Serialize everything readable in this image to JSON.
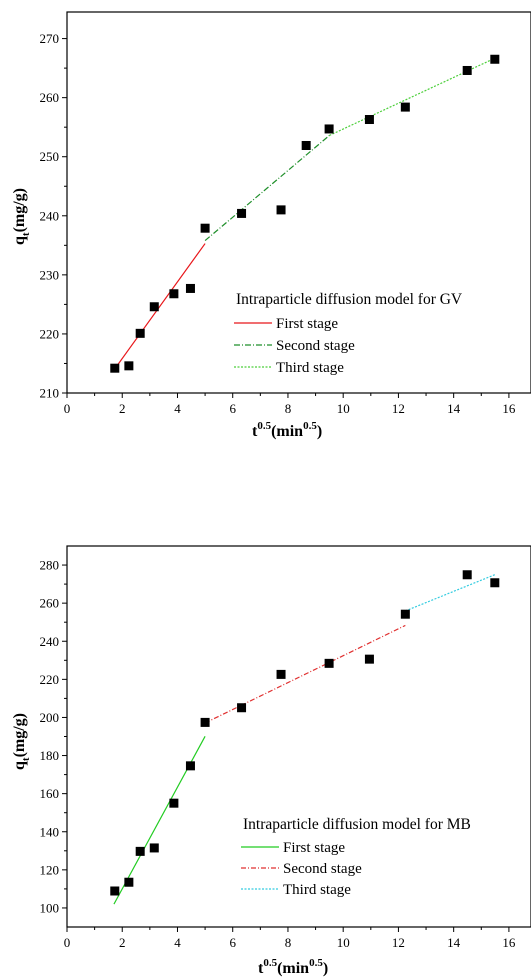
{
  "chart_data": [
    {
      "type": "scatter",
      "xlabel": "t^0.5(min^0.5)",
      "xlabel_parts": {
        "base": "t",
        "sup1": "0.5",
        "mid": "(min",
        "sup2": "0.5",
        "end": ")"
      },
      "ylabel": "qt(mg/g)",
      "ylabel_parts": {
        "base": "q",
        "sub": "t",
        "end": "(mg/g)"
      },
      "xlim": [
        0,
        16.8
      ],
      "ylim": [
        210,
        274.5
      ],
      "xticks": [
        "0",
        "2",
        "4",
        "6",
        "8",
        "10",
        "12",
        "14",
        "16"
      ],
      "xtick_values": [
        0,
        2,
        4,
        6,
        8,
        10,
        12,
        14,
        16
      ],
      "yticks": [
        "210",
        "220",
        "230",
        "240",
        "250",
        "260",
        "270"
      ],
      "ytick_values": [
        210,
        220,
        230,
        240,
        250,
        260,
        270
      ],
      "points": {
        "x": [
          1.73,
          2.24,
          2.65,
          3.16,
          3.87,
          4.47,
          5.0,
          6.32,
          7.75,
          8.66,
          9.49,
          10.95,
          12.25,
          14.49,
          15.49
        ],
        "y": [
          214.2,
          214.6,
          220.1,
          224.6,
          226.8,
          227.7,
          237.9,
          240.4,
          241.0,
          251.9,
          254.7,
          256.3,
          258.4,
          264.6,
          266.5
        ]
      },
      "legend_title": "Intraparticle diffusion model for GV",
      "series": [
        {
          "name": "First stage",
          "color": "#e8161a",
          "dash": "",
          "x": [
            1.7,
            5.0
          ],
          "y": [
            213.9,
            235.3
          ]
        },
        {
          "name": "Second stage",
          "color": "#1f8f2a",
          "dash": "6,2,1,2",
          "x": [
            5.0,
            9.5
          ],
          "y": [
            235.8,
            253.6
          ]
        },
        {
          "name": "Third stage",
          "color": "#4ccf3a",
          "dash": "2,1.5",
          "x": [
            9.5,
            15.5
          ],
          "y": [
            253.6,
            266.7
          ]
        }
      ]
    },
    {
      "type": "scatter",
      "xlabel": "t^0.5(min^0.5)",
      "xlabel_parts": {
        "base": "t",
        "sup1": "0.5",
        "mid": "(min",
        "sup2": "0.5",
        "end": ")"
      },
      "ylabel": "qt(mg/g)",
      "ylabel_parts": {
        "base": "q",
        "sub": "t",
        "end": "(mg/g)"
      },
      "xlim": [
        0,
        16.8
      ],
      "ylim": [
        90,
        290
      ],
      "xticks": [
        "0",
        "2",
        "4",
        "6",
        "8",
        "10",
        "12",
        "14",
        "16"
      ],
      "xtick_values": [
        0,
        2,
        4,
        6,
        8,
        10,
        12,
        14,
        16
      ],
      "yticks": [
        "100",
        "120",
        "140",
        "160",
        "180",
        "200",
        "220",
        "240",
        "260",
        "280"
      ],
      "ytick_values": [
        100,
        120,
        140,
        160,
        180,
        200,
        220,
        240,
        260,
        280
      ],
      "points": {
        "x": [
          1.73,
          2.24,
          2.65,
          3.16,
          3.87,
          4.47,
          5.0,
          6.32,
          7.75,
          9.49,
          10.95,
          12.25,
          14.49,
          15.49
        ],
        "y": [
          108.9,
          113.5,
          129.7,
          131.5,
          155.0,
          174.6,
          197.4,
          205.1,
          222.6,
          228.4,
          230.6,
          254.2,
          274.9,
          270.7
        ]
      },
      "legend_title": "Intraparticle diffusion model for MB",
      "series": [
        {
          "name": "First stage",
          "color": "#22cc22",
          "dash": "",
          "x": [
            1.7,
            5.0
          ],
          "y": [
            102.0,
            190.1
          ]
        },
        {
          "name": "Second stage",
          "color": "#e03030",
          "dash": "5,2,1,2",
          "x": [
            5.0,
            12.25
          ],
          "y": [
            197.1,
            248.3
          ]
        },
        {
          "name": "Third stage",
          "color": "#33cce0",
          "dash": "2,1.5",
          "x": [
            12.25,
            15.5
          ],
          "y": [
            255.9,
            275.0
          ]
        }
      ]
    }
  ]
}
